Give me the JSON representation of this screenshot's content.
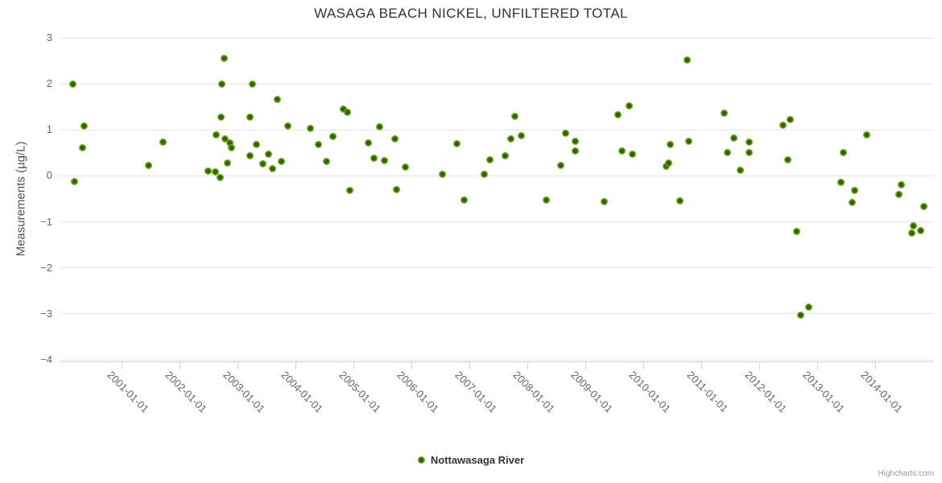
{
  "title": "WASAGA BEACH NICKEL, UNFILTERED TOTAL",
  "credits": "Highcharts.com",
  "legend": {
    "series_label": "Nottawasaga River"
  },
  "colors": {
    "marker_outer": "#86c12d",
    "marker_core": "#2d6100",
    "grid": "#e6e6e6",
    "axis_line": "#ccd6eb",
    "axis_text": "#666666",
    "title_text": "#333333",
    "credits_text": "#9b9bab"
  },
  "chart_data": {
    "type": "scatter",
    "title": "WASAGA BEACH NICKEL, UNFILTERED TOTAL",
    "xlabel": "",
    "ylabel": "Measurements (µg/L)",
    "ylim": [
      -4,
      3
    ],
    "grid": "horizontal",
    "legend_position": "bottom-center",
    "y_tick_values": [
      3,
      2,
      1,
      0,
      -1,
      -2,
      -3,
      -4
    ],
    "y_tick_labels": [
      "3",
      "2",
      "1",
      "0",
      "−1",
      "−2",
      "−3",
      "−4"
    ],
    "x_tick_years": [
      2001,
      2002,
      2003,
      2004,
      2005,
      2006,
      2007,
      2008,
      2009,
      2010,
      2011,
      2012,
      2013,
      2014
    ],
    "x_tick_labels": [
      "2001-01-01",
      "2002-01-01",
      "2003-01-01",
      "2004-01-01",
      "2005-01-01",
      "2006-01-01",
      "2007-01-01",
      "2008-01-01",
      "2009-01-01",
      "2010-01-01",
      "2011-01-01",
      "2012-01-01",
      "2013-01-01",
      "2014-01-01"
    ],
    "series": [
      {
        "name": "Nottawasaga River",
        "points": [
          [
            2000.16,
            2.0
          ],
          [
            2000.19,
            -0.13
          ],
          [
            2000.32,
            0.62
          ],
          [
            2000.36,
            1.08
          ],
          [
            2001.47,
            0.23
          ],
          [
            2001.72,
            0.73
          ],
          [
            2002.49,
            0.11
          ],
          [
            2002.62,
            0.08
          ],
          [
            2002.63,
            0.89
          ],
          [
            2002.7,
            -0.04
          ],
          [
            2002.72,
            1.28
          ],
          [
            2002.73,
            2.0
          ],
          [
            2002.77,
            2.55
          ],
          [
            2002.78,
            0.8
          ],
          [
            2002.83,
            0.28
          ],
          [
            2002.87,
            0.71
          ],
          [
            2002.9,
            0.61
          ],
          [
            2003.22,
            1.28
          ],
          [
            2003.22,
            0.44
          ],
          [
            2003.25,
            2.0
          ],
          [
            2003.32,
            0.68
          ],
          [
            2003.44,
            0.26
          ],
          [
            2003.53,
            0.48
          ],
          [
            2003.6,
            0.15
          ],
          [
            2003.69,
            1.66
          ],
          [
            2003.75,
            0.31
          ],
          [
            2003.87,
            1.08
          ],
          [
            2004.26,
            1.03
          ],
          [
            2004.39,
            0.68
          ],
          [
            2004.54,
            0.32
          ],
          [
            2004.64,
            0.85
          ],
          [
            2004.83,
            1.46
          ],
          [
            2004.89,
            1.38
          ],
          [
            2004.94,
            -0.32
          ],
          [
            2005.26,
            0.72
          ],
          [
            2005.36,
            0.39
          ],
          [
            2005.45,
            1.07
          ],
          [
            2005.54,
            0.34
          ],
          [
            2005.72,
            0.8
          ],
          [
            2005.74,
            -0.29
          ],
          [
            2005.89,
            0.19
          ],
          [
            2006.53,
            0.03
          ],
          [
            2006.79,
            0.7
          ],
          [
            2006.91,
            -0.53
          ],
          [
            2007.26,
            0.04
          ],
          [
            2007.36,
            0.35
          ],
          [
            2007.62,
            0.44
          ],
          [
            2007.72,
            0.81
          ],
          [
            2007.78,
            1.3
          ],
          [
            2007.9,
            0.88
          ],
          [
            2008.32,
            -0.53
          ],
          [
            2008.57,
            0.23
          ],
          [
            2008.66,
            0.93
          ],
          [
            2008.82,
            0.55
          ],
          [
            2008.83,
            0.75
          ],
          [
            2009.32,
            -0.56
          ],
          [
            2009.56,
            1.33
          ],
          [
            2009.63,
            0.55
          ],
          [
            2009.75,
            1.53
          ],
          [
            2009.81,
            0.48
          ],
          [
            2010.4,
            0.21
          ],
          [
            2010.44,
            0.28
          ],
          [
            2010.47,
            0.69
          ],
          [
            2010.63,
            -0.55
          ],
          [
            2010.76,
            2.52
          ],
          [
            2010.79,
            0.76
          ],
          [
            2011.39,
            1.37
          ],
          [
            2011.45,
            0.5
          ],
          [
            2011.56,
            0.82
          ],
          [
            2011.67,
            0.13
          ],
          [
            2011.82,
            0.5
          ],
          [
            2011.83,
            0.73
          ],
          [
            2012.41,
            1.1
          ],
          [
            2012.49,
            0.35
          ],
          [
            2012.54,
            1.23
          ],
          [
            2012.64,
            -1.2
          ],
          [
            2012.72,
            -3.03
          ],
          [
            2012.85,
            -2.85
          ],
          [
            2013.41,
            -0.14
          ],
          [
            2013.45,
            0.51
          ],
          [
            2013.61,
            -0.57
          ],
          [
            2013.64,
            -0.31
          ],
          [
            2013.85,
            0.89
          ],
          [
            2014.41,
            -0.4
          ],
          [
            2014.45,
            -0.19
          ],
          [
            2014.63,
            -1.25
          ],
          [
            2014.66,
            -1.08
          ],
          [
            2014.79,
            -1.19
          ],
          [
            2014.84,
            -0.66
          ]
        ]
      }
    ]
  }
}
